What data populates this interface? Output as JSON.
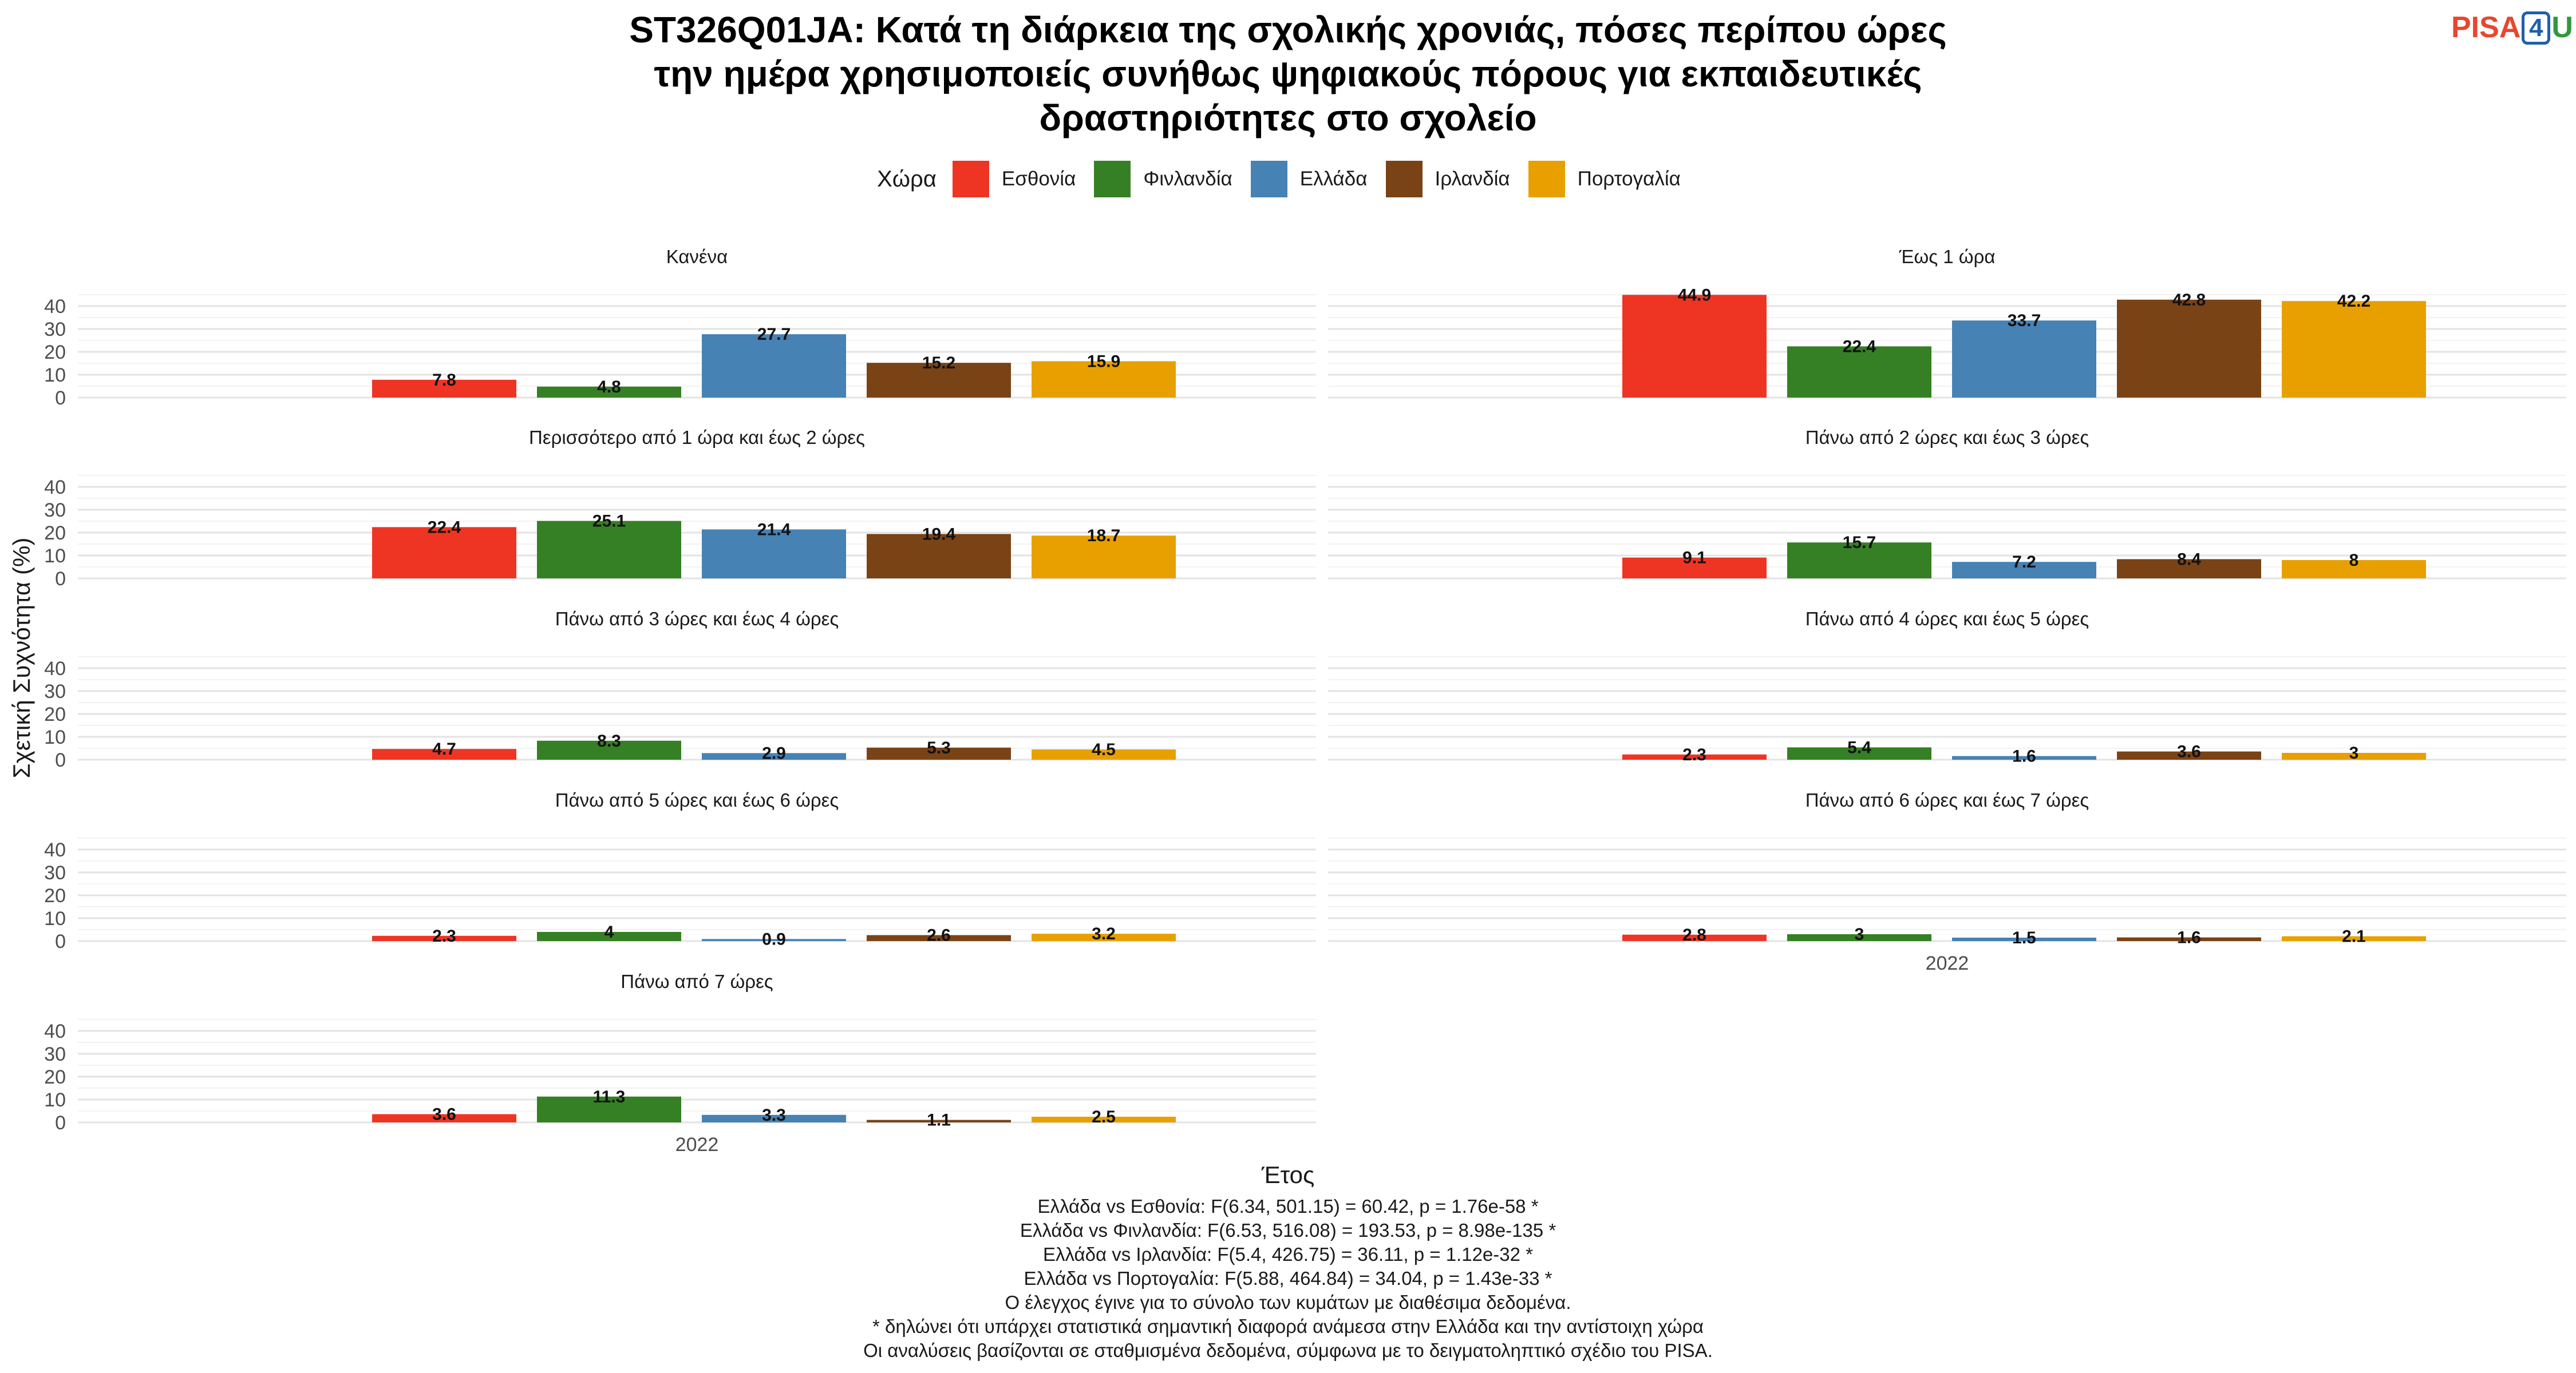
{
  "title_lines": [
    "ST326Q01JA: Κατά τη διάρκεια της σχολικής χρονιάς, πόσες περίπου ώρες",
    "την ημέρα χρησιμοποιείς συνήθως ψηφιακούς πόρους για εκπαιδευτικές",
    "δραστηριότητες στο σχολείο"
  ],
  "logo": {
    "part1": "PISA",
    "part2": "4",
    "part3": "U"
  },
  "legend": {
    "title": "Χώρα"
  },
  "colors": {
    "Εσθονία": "#ee3524",
    "Φινλανδία": "#358024",
    "Ελλάδα": "#4682b4",
    "Ιρλανδία": "#7a4316",
    "Πορτογαλία": "#e8a000"
  },
  "chart_data": {
    "type": "bar",
    "facet_by": "category",
    "x": [
      "2022"
    ],
    "xlabel": "Έτος",
    "ylabel": "Σχετική Συχνότητα (%)",
    "ylim": [
      0,
      45
    ],
    "yticks": [
      0,
      10,
      20,
      30,
      40
    ],
    "grid": true,
    "legend_position": "top",
    "series_names": [
      "Εσθονία",
      "Φινλανδία",
      "Ελλάδα",
      "Ιρλανδία",
      "Πορτογαλία"
    ],
    "facets": [
      {
        "label": "Κανένα",
        "values": [
          7.8,
          4.8,
          27.7,
          15.2,
          15.9
        ]
      },
      {
        "label": "Έως 1 ώρα",
        "values": [
          44.9,
          22.4,
          33.7,
          42.8,
          42.2
        ]
      },
      {
        "label": "Περισσότερο από 1 ώρα και έως 2 ώρες",
        "values": [
          22.4,
          25.1,
          21.4,
          19.4,
          18.7
        ]
      },
      {
        "label": "Πάνω από 2 ώρες και έως 3 ώρες",
        "values": [
          9.1,
          15.7,
          7.2,
          8.4,
          8
        ]
      },
      {
        "label": "Πάνω από 3 ώρες και έως 4 ώρες",
        "values": [
          4.7,
          8.3,
          2.9,
          5.3,
          4.5
        ]
      },
      {
        "label": "Πάνω από 4 ώρες και έως 5 ώρες",
        "values": [
          2.3,
          5.4,
          1.6,
          3.6,
          3
        ]
      },
      {
        "label": "Πάνω από 5 ώρες και έως 6 ώρες",
        "values": [
          2.3,
          4,
          0.9,
          2.6,
          3.2
        ]
      },
      {
        "label": "Πάνω από 6 ώρες και έως 7 ώρες",
        "values": [
          2.8,
          3,
          1.5,
          1.6,
          2.1
        ]
      },
      {
        "label": "Πάνω από 7 ώρες",
        "values": [
          3.6,
          11.3,
          3.3,
          1.1,
          2.5
        ]
      }
    ]
  },
  "footer_lines": [
    "Ελλάδα vs Εσθονία: F(6.34, 501.15) = 60.42, p = 1.76e-58 *",
    "Ελλάδα vs Φινλανδία: F(6.53, 516.08) = 193.53, p = 8.98e-135 *",
    "Ελλάδα vs Ιρλανδία: F(5.4, 426.75) = 36.11, p = 1.12e-32 *",
    "Ελλάδα vs Πορτογαλία: F(5.88, 464.84) = 34.04, p = 1.43e-33 *",
    "Ο έλεγχος έγινε για το σύνολο των κυμάτων με διαθέσιμα δεδομένα.",
    "* δηλώνει ότι υπάρχει στατιστικά σημαντική διαφορά ανάμεσα στην Ελλάδα και την αντίστοιχη χώρα",
    "Οι αναλύσεις βασίζονται σε σταθμισμένα δεδομένα, σύμφωνα με το δειγματοληπτικό σχέδιο του PISA."
  ]
}
